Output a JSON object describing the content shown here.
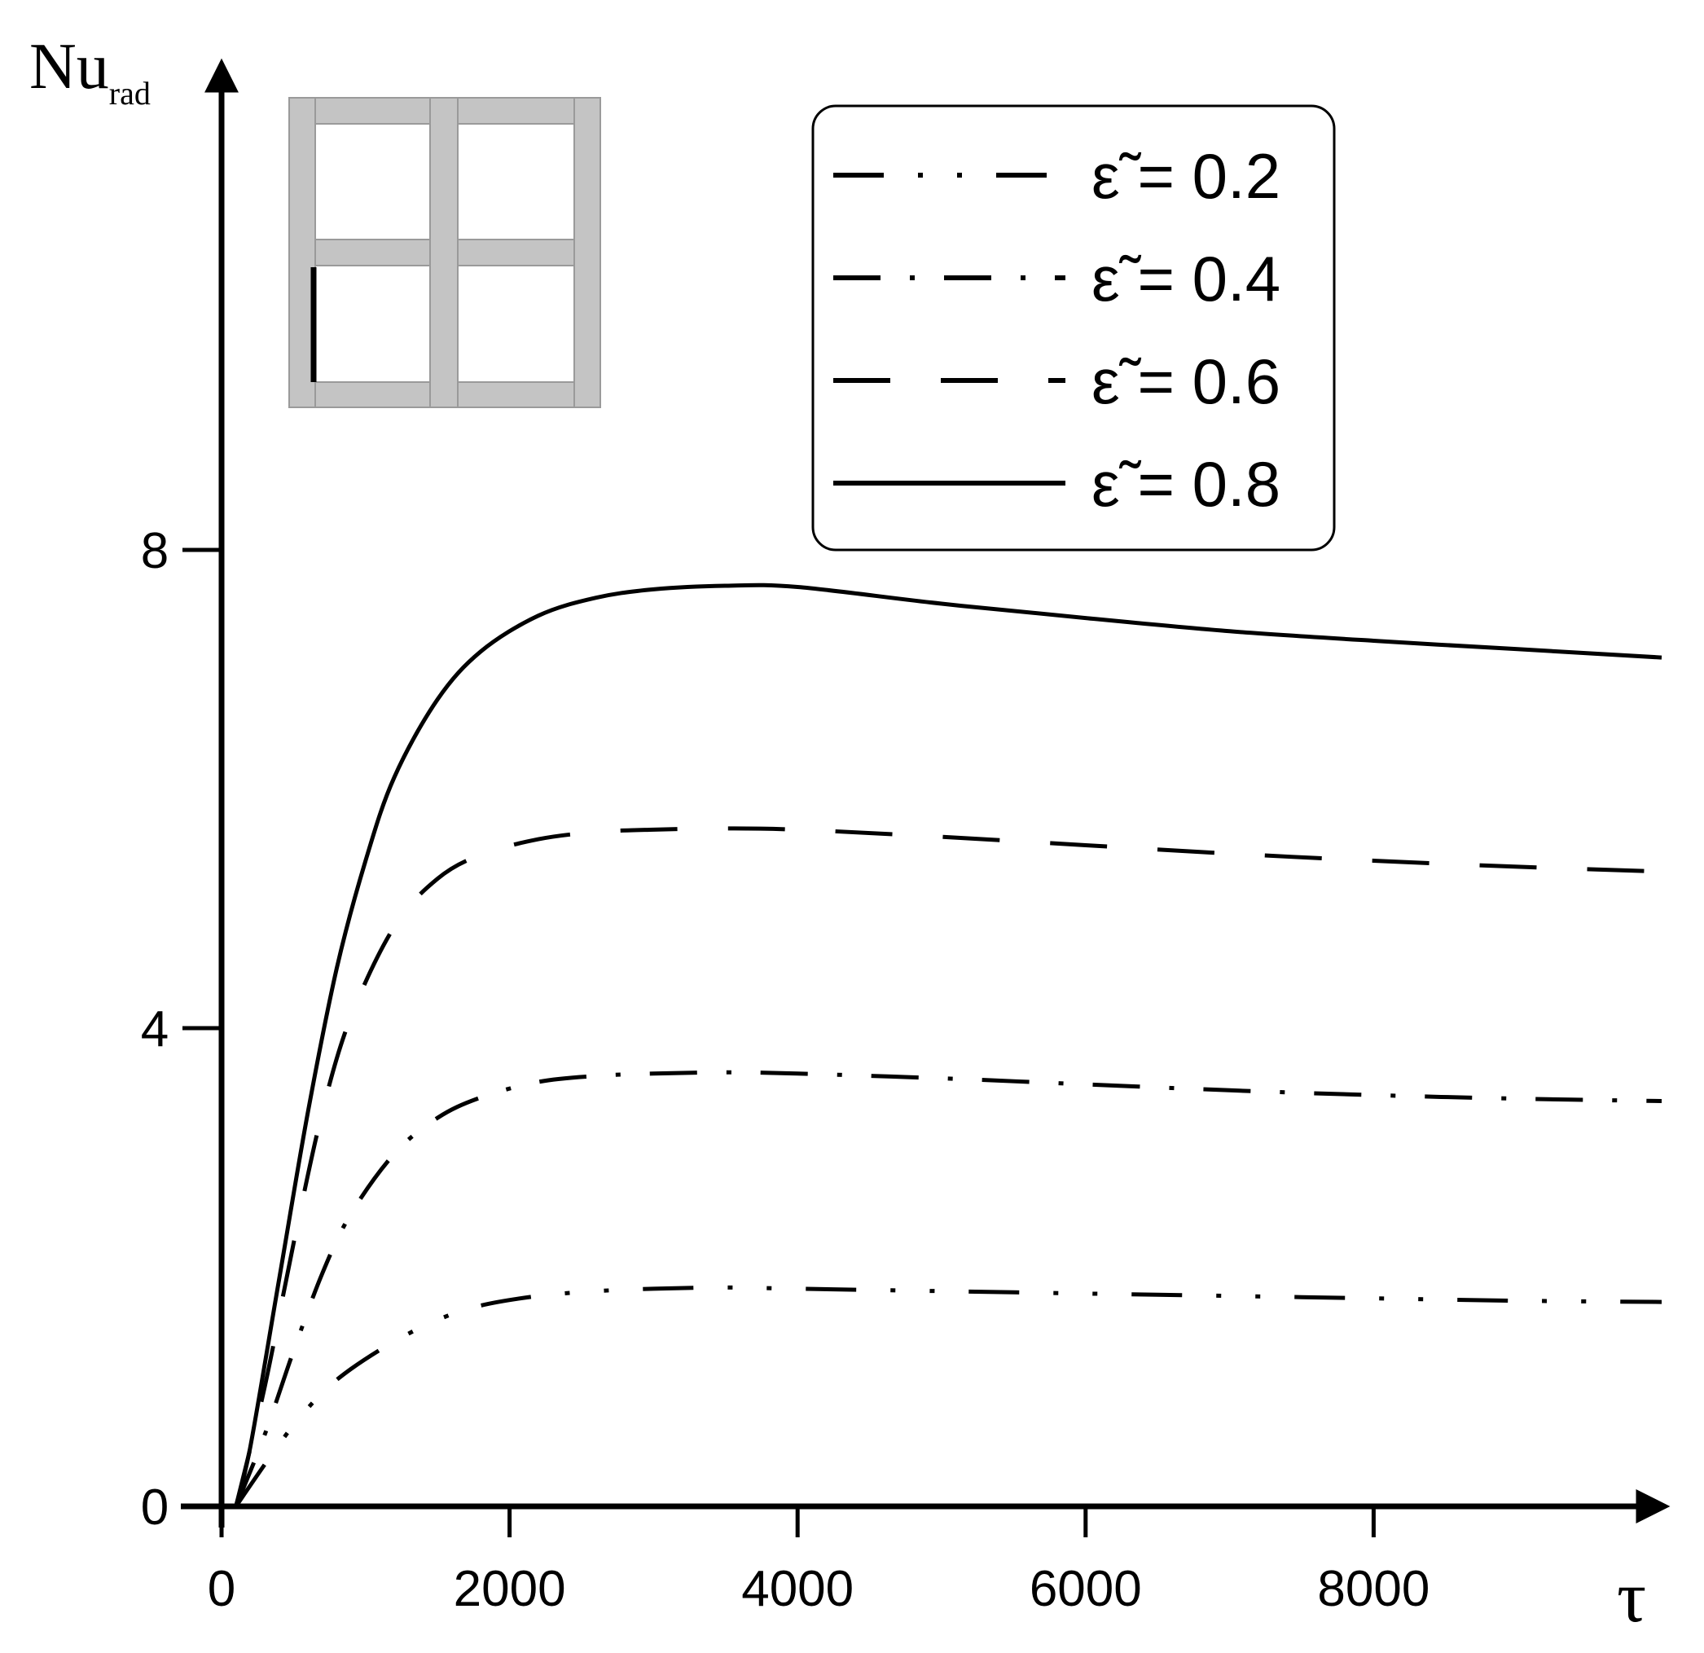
{
  "chart_data": {
    "type": "line",
    "xlabel": "τ",
    "ylabel": "Nu",
    "ylabel_subscript": "rad",
    "xlim": [
      0,
      10000
    ],
    "ylim": [
      0,
      9.5
    ],
    "xticks": [
      0,
      2000,
      4000,
      6000,
      8000
    ],
    "yticks": [
      0,
      4,
      8
    ],
    "grid": false,
    "legend_position": "top-right",
    "series": [
      {
        "name": "ε̃ = 0.2",
        "dash": "dash-dot-dot",
        "x": [
          100,
          300,
          500,
          700,
          900,
          1200,
          1500,
          1800,
          2200,
          2600,
          3000,
          3500,
          4000,
          5000,
          6000,
          7000,
          8000,
          9000,
          10000
        ],
        "y": [
          0,
          0.35,
          0.68,
          0.95,
          1.15,
          1.38,
          1.56,
          1.68,
          1.76,
          1.8,
          1.82,
          1.83,
          1.82,
          1.8,
          1.78,
          1.76,
          1.74,
          1.72,
          1.71
        ]
      },
      {
        "name": "ε̃ = 0.4",
        "dash": "dash-dot",
        "x": [
          100,
          300,
          500,
          700,
          900,
          1200,
          1500,
          1800,
          2200,
          2600,
          3000,
          3500,
          4000,
          5000,
          6000,
          7000,
          8000,
          9000,
          10000
        ],
        "y": [
          0,
          0.6,
          1.3,
          1.95,
          2.45,
          2.95,
          3.25,
          3.42,
          3.55,
          3.6,
          3.62,
          3.63,
          3.62,
          3.58,
          3.53,
          3.48,
          3.44,
          3.41,
          3.39
        ]
      },
      {
        "name": "ε̃ = 0.6",
        "dash": "long-dash",
        "x": [
          100,
          300,
          500,
          700,
          900,
          1200,
          1500,
          1800,
          2200,
          2600,
          3000,
          3500,
          4000,
          5000,
          6000,
          7000,
          8000,
          9000,
          10000
        ],
        "y": [
          0,
          1.0,
          2.2,
          3.3,
          4.1,
          4.85,
          5.25,
          5.45,
          5.58,
          5.64,
          5.66,
          5.67,
          5.66,
          5.6,
          5.53,
          5.46,
          5.4,
          5.35,
          5.31
        ]
      },
      {
        "name": "ε̃ = 0.8",
        "dash": "solid",
        "x": [
          100,
          200,
          400,
          600,
          800,
          1000,
          1200,
          1500,
          1800,
          2200,
          2600,
          3000,
          3500,
          4000,
          5000,
          6000,
          7000,
          8000,
          9000,
          10000
        ],
        "y": [
          0,
          0.5,
          1.9,
          3.3,
          4.5,
          5.4,
          6.1,
          6.75,
          7.15,
          7.45,
          7.6,
          7.67,
          7.7,
          7.69,
          7.55,
          7.43,
          7.32,
          7.24,
          7.17,
          7.1
        ]
      }
    ]
  },
  "inset": {
    "icon": "grid-inset-icon",
    "color": "#c0c0c0"
  }
}
